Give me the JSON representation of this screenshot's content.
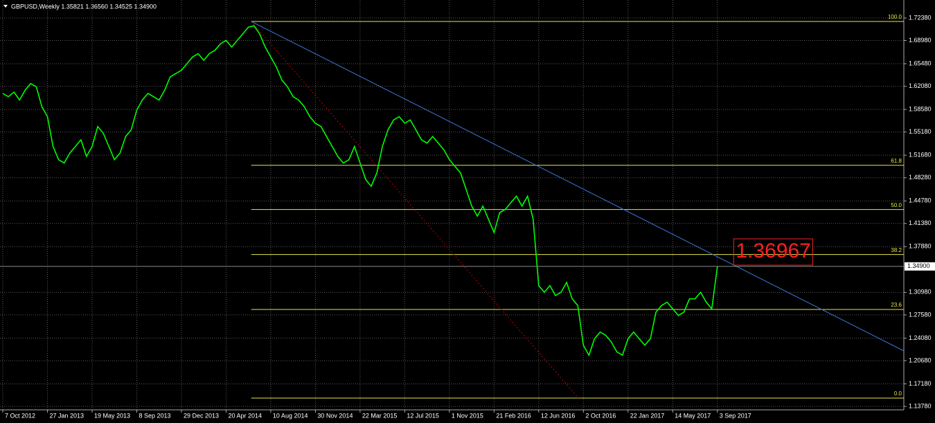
{
  "chart_data": {
    "type": "line",
    "title": "GBPUSD,Weekly  1.35821 1.36560 1.34525 1.34900",
    "color": "#00ff00",
    "values": [
      1.61,
      1.605,
      1.612,
      1.6,
      1.615,
      1.625,
      1.62,
      1.59,
      1.575,
      1.53,
      1.51,
      1.505,
      1.52,
      1.53,
      1.54,
      1.515,
      1.53,
      1.56,
      1.55,
      1.53,
      1.51,
      1.52,
      1.545,
      1.555,
      1.585,
      1.6,
      1.61,
      1.605,
      1.6,
      1.615,
      1.635,
      1.64,
      1.645,
      1.655,
      1.665,
      1.67,
      1.66,
      1.67,
      1.675,
      1.685,
      1.69,
      1.68,
      1.69,
      1.7,
      1.71,
      1.712,
      1.7,
      1.68,
      1.665,
      1.65,
      1.63,
      1.62,
      1.605,
      1.6,
      1.59,
      1.575,
      1.565,
      1.56,
      1.545,
      1.53,
      1.515,
      1.505,
      1.51,
      1.53,
      1.505,
      1.48,
      1.47,
      1.49,
      1.53,
      1.555,
      1.57,
      1.575,
      1.565,
      1.57,
      1.555,
      1.54,
      1.535,
      1.545,
      1.535,
      1.525,
      1.51,
      1.5,
      1.49,
      1.465,
      1.44,
      1.425,
      1.44,
      1.42,
      1.4,
      1.43,
      1.435,
      1.445,
      1.455,
      1.44,
      1.455,
      1.42,
      1.32,
      1.31,
      1.32,
      1.305,
      1.31,
      1.325,
      1.3,
      1.29,
      1.23,
      1.215,
      1.24,
      1.25,
      1.245,
      1.235,
      1.22,
      1.215,
      1.24,
      1.25,
      1.24,
      1.23,
      1.24,
      1.28,
      1.29,
      1.295,
      1.285,
      1.275,
      1.28,
      1.3,
      1.3,
      1.31,
      1.295,
      1.285,
      1.349
    ],
    "xlim": [
      -0.5,
      161.4
    ],
    "xticks": [
      {
        "value": 0,
        "label": "7 Oct 2012"
      },
      {
        "value": 8,
        "label": "27 Jan 2013"
      },
      {
        "value": 16,
        "label": "19 May 2013"
      },
      {
        "value": 24,
        "label": "8 Sep 2013"
      },
      {
        "value": 32,
        "label": "29 Dec 2013"
      },
      {
        "value": 40,
        "label": "20 Apr 2014"
      },
      {
        "value": 48,
        "label": "10 Aug 2014"
      },
      {
        "value": 56,
        "label": "30 Nov 2014"
      },
      {
        "value": 64,
        "label": "22 Mar 2015"
      },
      {
        "value": 72,
        "label": "12 Jul 2015"
      },
      {
        "value": 80,
        "label": "1 Nov 2015"
      },
      {
        "value": 88,
        "label": "21 Feb 2016"
      },
      {
        "value": 96,
        "label": "12 Jun 2016"
      },
      {
        "value": 104,
        "label": "2 Oct 2016"
      },
      {
        "value": 112,
        "label": "22 Jan 2017"
      },
      {
        "value": 120,
        "label": "14 May 2017"
      },
      {
        "value": 128,
        "label": "3 Sep 2017"
      }
    ],
    "ylim": [
      1.1378,
      1.7238
    ],
    "yticks": [
      {
        "value": 1.7238,
        "label": "1.72380"
      },
      {
        "value": 1.6898,
        "label": "1.68980"
      },
      {
        "value": 1.6548,
        "label": "1.65480"
      },
      {
        "value": 1.6208,
        "label": "1.62080"
      },
      {
        "value": 1.5858,
        "label": "1.58580"
      },
      {
        "value": 1.5518,
        "label": "1.55180"
      },
      {
        "value": 1.5168,
        "label": "1.51680"
      },
      {
        "value": 1.4828,
        "label": "1.48280"
      },
      {
        "value": 1.4478,
        "label": "1.44780"
      },
      {
        "value": 1.4138,
        "label": "1.41380"
      },
      {
        "value": 1.3788,
        "label": "1.37880"
      },
      {
        "value": 1.3098,
        "label": "1.30980"
      },
      {
        "value": 1.2758,
        "label": "1.27580"
      },
      {
        "value": 1.2408,
        "label": "1.24080"
      },
      {
        "value": 1.2068,
        "label": "1.20680"
      },
      {
        "value": 1.1718,
        "label": "1.17180"
      },
      {
        "value": 1.1378,
        "label": "1.13780"
      }
    ],
    "current_price": {
      "value": 1.349,
      "label": "1.34900"
    },
    "grid": true,
    "fibo_start": 44.5,
    "fibo": [
      {
        "label": "100.0",
        "value": 1.7186
      },
      {
        "label": "61.8",
        "value": 1.5016
      },
      {
        "label": "50.0",
        "value": 1.4348
      },
      {
        "label": "38.2",
        "value": 1.3669
      },
      {
        "label": "23.6",
        "value": 1.2841
      },
      {
        "label": "0.0",
        "value": 1.1504
      }
    ],
    "trendline": {
      "color": "#3c78d8",
      "points": [
        {
          "x": 44.5,
          "y": 1.7186
        },
        {
          "x": 161.4,
          "y": 1.2215
        }
      ]
    },
    "fibo_diagonal": {
      "color": "#c00000",
      "points": [
        {
          "x": 44.5,
          "y": 1.7186
        },
        {
          "x": 103.1,
          "y": 1.1504
        }
      ]
    },
    "annotation": {
      "label": "1.36967",
      "value": 1.36967,
      "x": 131.3
    }
  }
}
